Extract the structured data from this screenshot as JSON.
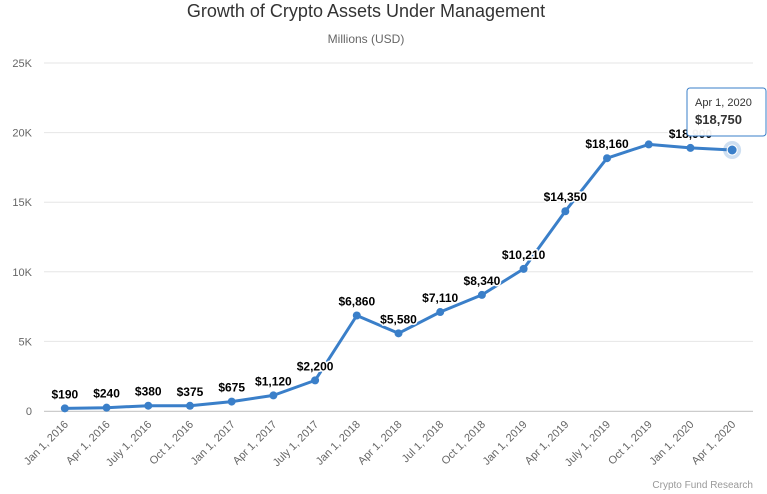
{
  "chart_data": {
    "type": "line",
    "title": "Growth of Crypto Assets Under Management",
    "subtitle": "Millions (USD)",
    "credit": "Crypto Fund Research",
    "categories": [
      "Jan 1, 2016",
      "Apr 1, 2016",
      "July 1, 2016",
      "Oct 1, 2016",
      "Jan 1, 2017",
      "Apr 1, 2017",
      "July 1, 2017",
      "Jan 1, 2018",
      "Apr 1, 2018",
      "Jul 1, 2018",
      "Oct 1, 2018",
      "Jan 1, 2019",
      "Apr 1, 2019",
      "July 1, 2019",
      "Oct 1, 2019",
      "Jan 1, 2020",
      "Apr 1, 2020"
    ],
    "series": [
      {
        "values": [
          190,
          240,
          380,
          375,
          675,
          1120,
          2200,
          6860,
          5580,
          7110,
          8340,
          10210,
          14350,
          18160,
          19150,
          18900,
          18750
        ],
        "labels": [
          "$190",
          "$240",
          "$380",
          "$375",
          "$675",
          "$1,120",
          "$2,200",
          "$6,860",
          "$5,580",
          "$7,110",
          "$8,340",
          "$10,210",
          "$14,350",
          "$18,160",
          "",
          "$18,900",
          ""
        ]
      }
    ],
    "y_ticks": [
      0,
      5000,
      10000,
      15000,
      20000,
      25000
    ],
    "y_tick_labels": [
      "0",
      "5K",
      "10K",
      "15K",
      "20K",
      "25K"
    ],
    "ylim": [
      0,
      25000
    ],
    "grid": true,
    "colors": {
      "line": "#3a7fc9",
      "grid": "#e6e6e6",
      "tooltip_border": "#3a7fc9"
    },
    "tooltip": {
      "date": "Apr 1, 2020",
      "value": "$18,750",
      "point_index": 16
    }
  }
}
